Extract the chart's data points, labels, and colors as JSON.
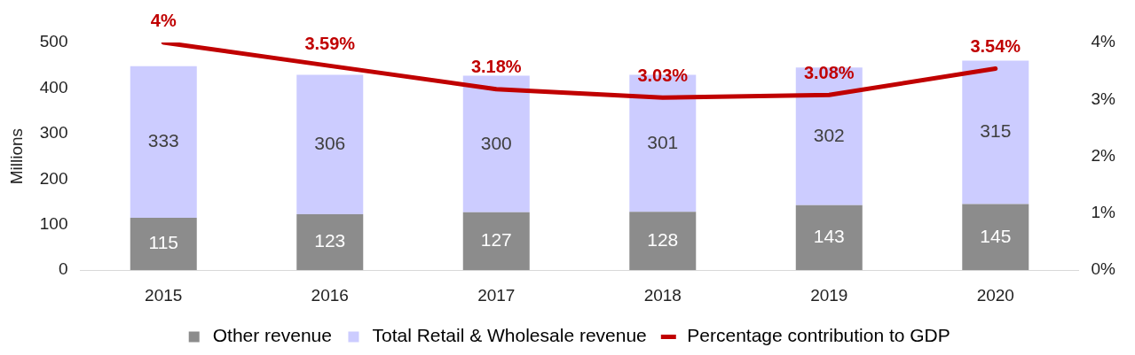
{
  "chart_data": {
    "type": "bar",
    "stacked": true,
    "ylabel": "Millions",
    "categories": [
      "2015",
      "2016",
      "2017",
      "2018",
      "2019",
      "2020"
    ],
    "series": [
      {
        "name": "Other revenue",
        "color": "#8c8c8c",
        "values": [
          115,
          123,
          127,
          128,
          143,
          145
        ]
      },
      {
        "name": "Total Retail & Wholesale revenue",
        "color": "#ccccff",
        "values": [
          333,
          306,
          300,
          301,
          302,
          315
        ]
      },
      {
        "name": "Percentage contribution to GDP",
        "type": "line",
        "axis": "y2",
        "color": "#c00000",
        "values": [
          4,
          3.59,
          3.18,
          3.03,
          3.08,
          3.54
        ],
        "value_labels": [
          "4%",
          "3.59%",
          "3.18%",
          "3.03%",
          "3.08%",
          "3.54%"
        ]
      }
    ],
    "data_labels": true,
    "ylim": [
      0,
      500
    ],
    "yticks": [
      0,
      100,
      200,
      300,
      400,
      500
    ],
    "y2lim": [
      0,
      4
    ],
    "y2ticks": [
      {
        "value": 0,
        "label": "0%"
      },
      {
        "value": 1,
        "label": "1%"
      },
      {
        "value": 2,
        "label": "2%"
      },
      {
        "value": 3,
        "label": "3%"
      },
      {
        "value": 4,
        "label": "4%"
      }
    ],
    "grid": false,
    "legend": "bottom",
    "marker": "none",
    "line_style": "solid"
  }
}
